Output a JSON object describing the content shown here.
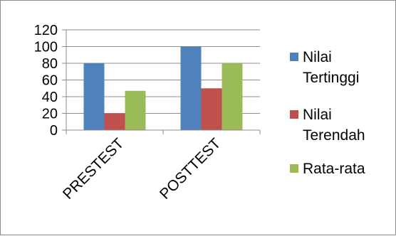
{
  "chart_data": {
    "type": "bar",
    "categories": [
      "PRESTEST",
      "POSTTEST"
    ],
    "series": [
      {
        "name": "Nilai Tertinggi",
        "values": [
          80,
          100
        ],
        "color": "#4f81bd"
      },
      {
        "name": "Nilai Terendah",
        "values": [
          20,
          50
        ],
        "color": "#c0504d"
      },
      {
        "name": "Rata-rata",
        "values": [
          47,
          80
        ],
        "color": "#9bbb59"
      }
    ],
    "title": "",
    "xlabel": "",
    "ylabel": "",
    "ylim": [
      0,
      120
    ],
    "yticks": [
      0,
      20,
      40,
      60,
      80,
      100,
      120
    ],
    "grid": true,
    "legend_position": "right"
  }
}
